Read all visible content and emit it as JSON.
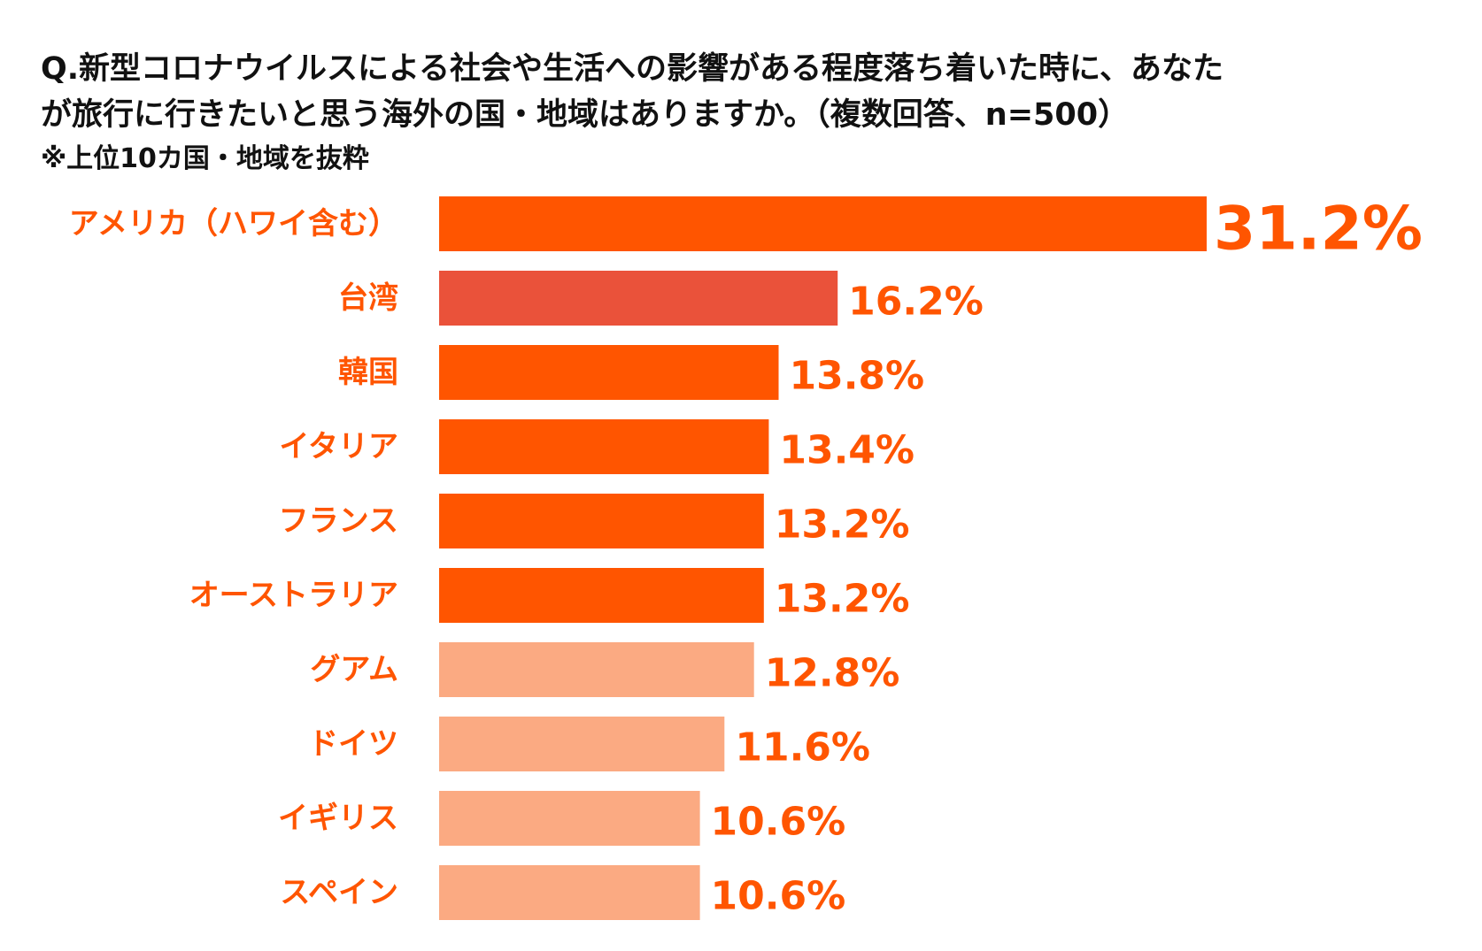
{
  "header": {
    "title_line1": "Q.新型コロナウイルスによる社会や生活への影響がある程度落ち着いた時に、あなた",
    "title_line2": "が旅行に行きたいと思う海外の国・地域はありますか。（複数回答、n=500）",
    "note": "※上位10カ国・地域を抜粋"
  },
  "chart_data": {
    "type": "bar",
    "orientation": "horizontal",
    "title": "Q.新型コロナウイルスによる社会や生活への影響がある程度落ち着いた時に、あなたが旅行に行きたいと思う海外の国・地域はありますか。（複数回答、n=500）",
    "subtitle": "※上位10カ国・地域を抜粋",
    "categories": [
      "アメリカ（ハワイ含む）",
      "台湾",
      "韓国",
      "イタリア",
      "フランス",
      "オーストラリア",
      "グアム",
      "ドイツ",
      "イギリス",
      "スペイン"
    ],
    "values": [
      31.2,
      16.2,
      13.8,
      13.4,
      13.2,
      13.2,
      12.8,
      11.6,
      10.6,
      10.6
    ],
    "value_labels": [
      "31.2%",
      "16.2%",
      "13.8%",
      "13.4%",
      "13.2%",
      "13.2%",
      "12.8%",
      "11.6%",
      "10.6%",
      "10.6%"
    ],
    "bar_colors": [
      "#FF5500",
      "#EA523A",
      "#FF5500",
      "#FF5500",
      "#FF5500",
      "#FF5500",
      "#FBAA82",
      "#FBAA82",
      "#FBAA82",
      "#FBAA82"
    ],
    "label_color": "#FF5500",
    "xlim": [
      0,
      31.2
    ],
    "xlabel": "",
    "ylabel": "",
    "grid": false,
    "legend": "none"
  }
}
